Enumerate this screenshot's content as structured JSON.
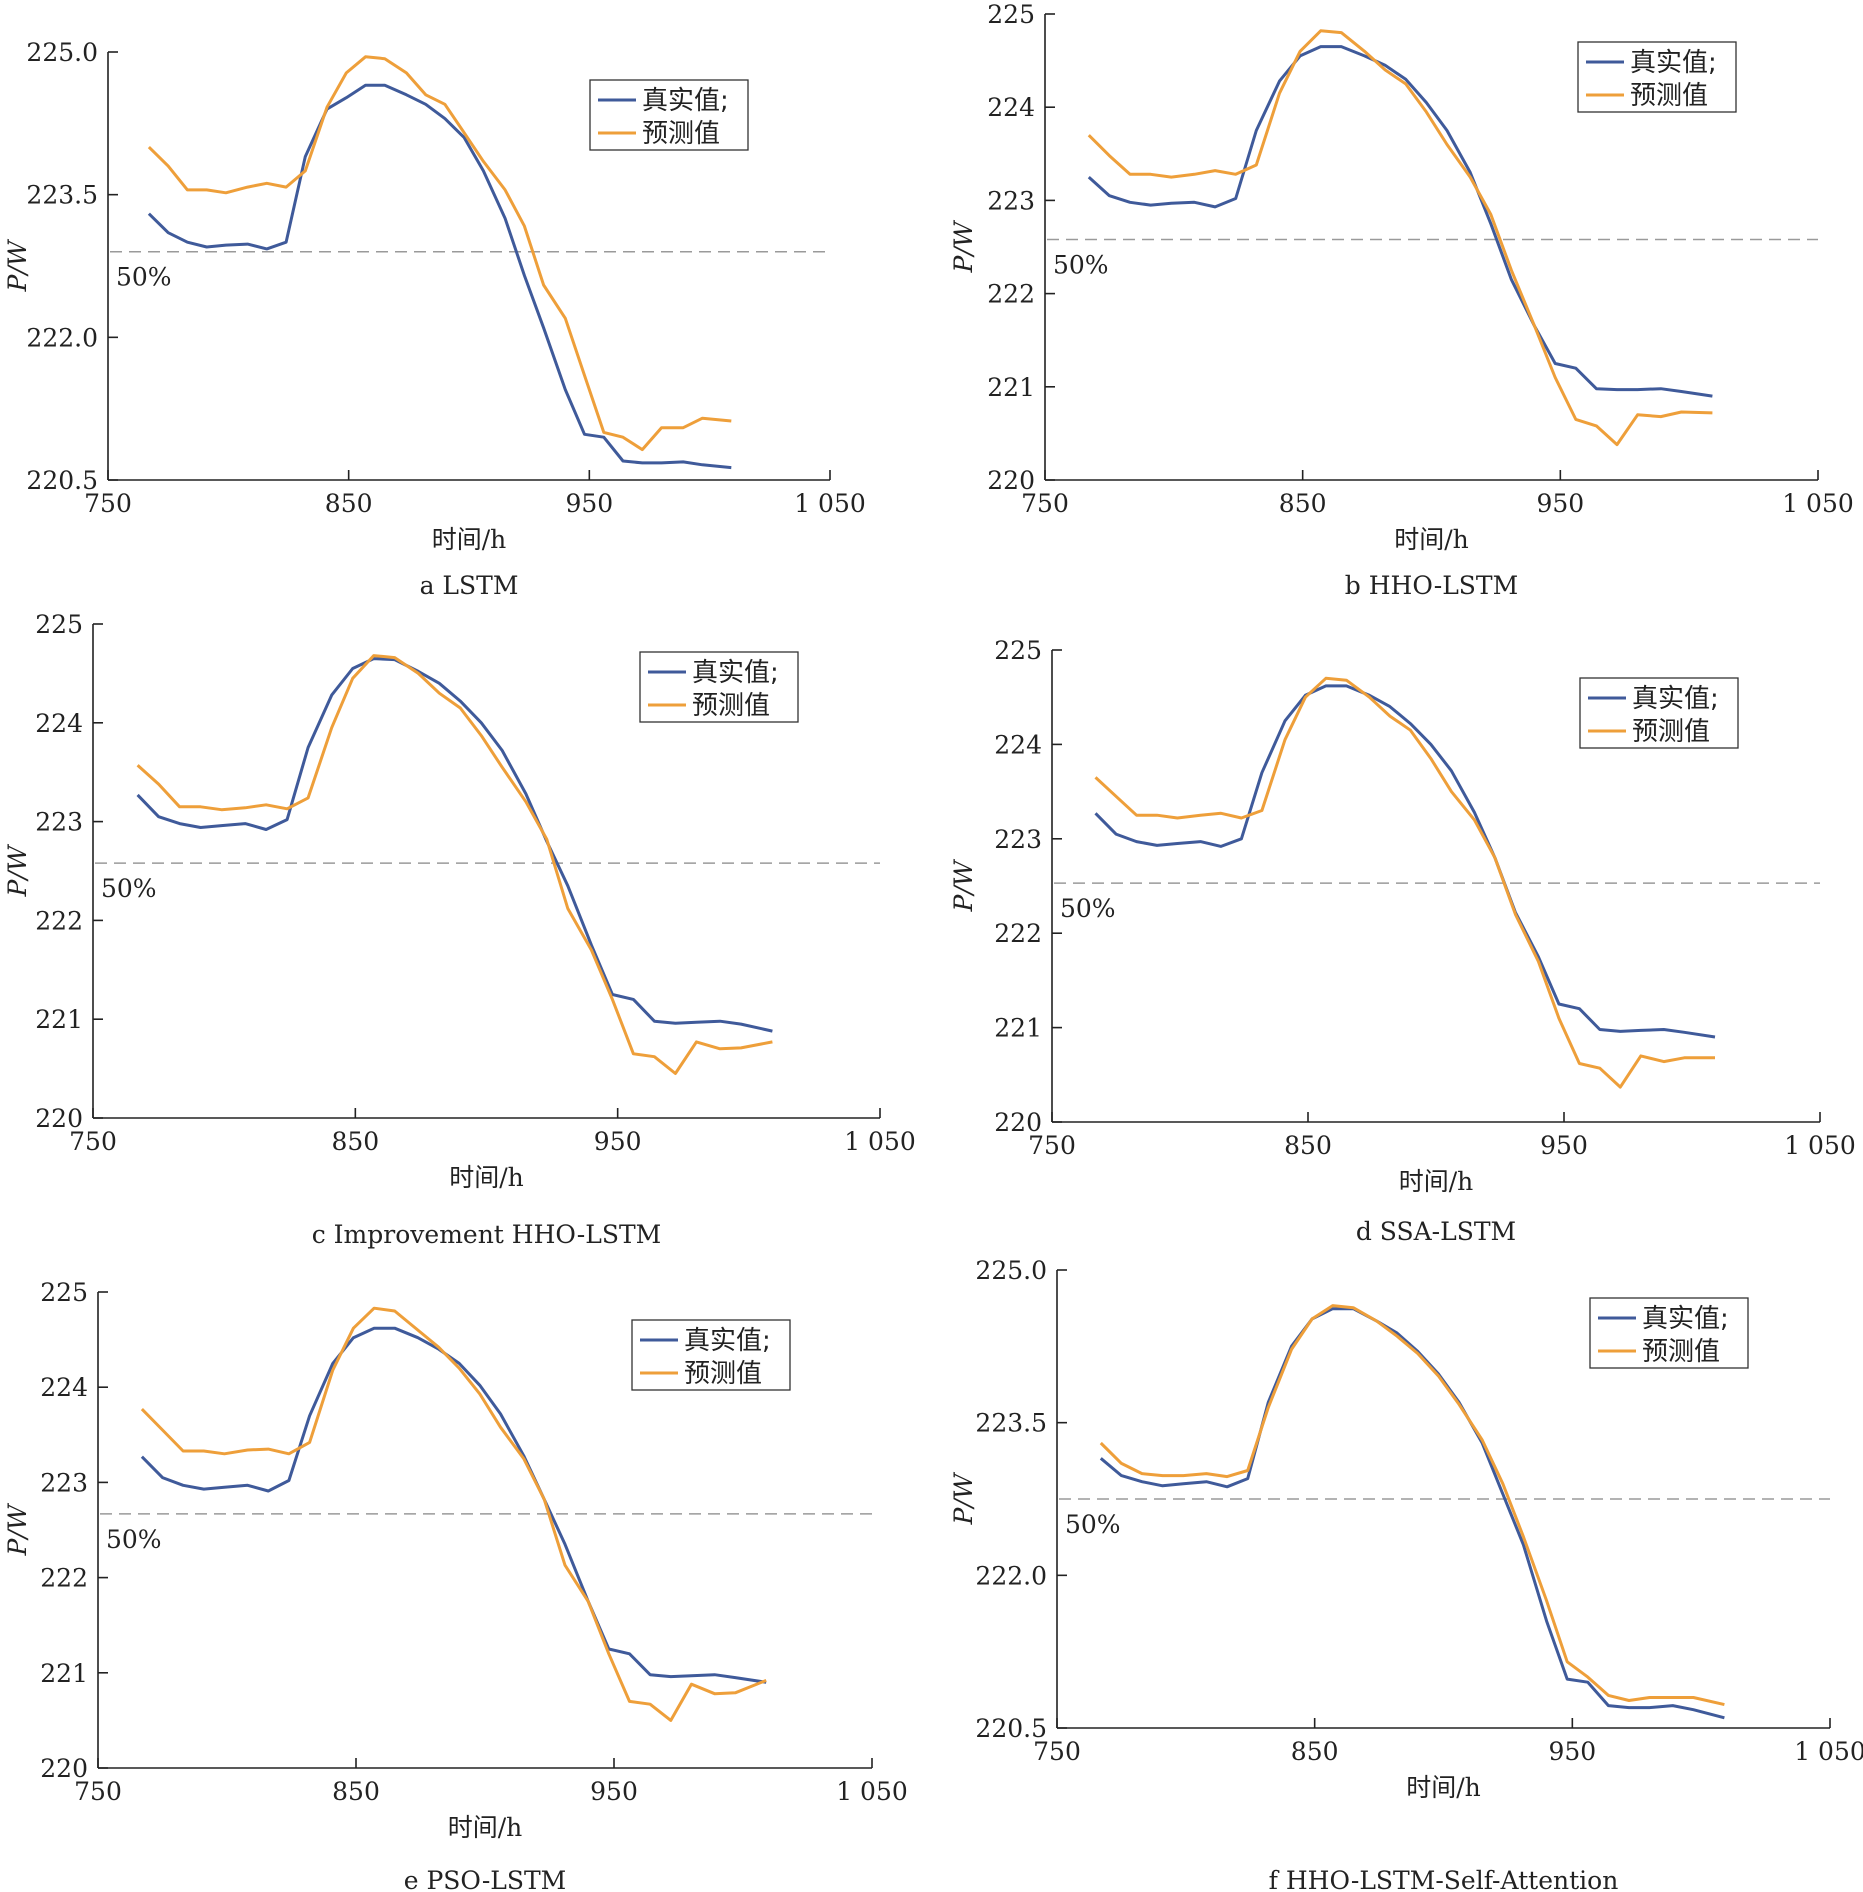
{
  "legend": {
    "actual": "真实值;",
    "predicted": "预测值"
  },
  "colors": {
    "actual": "#3f5a9a",
    "predicted": "#ee9f3a",
    "reference": "#9a9a9a",
    "axis": "#222222"
  },
  "chart_data": [
    {
      "type": "line",
      "caption": "a LSTM",
      "xlabel": "时间/h",
      "ylabel": "P/W",
      "xlim": [
        750,
        1050
      ],
      "ylim": [
        220.5,
        225.0
      ],
      "xticks": [
        750,
        850,
        950,
        1050
      ],
      "xtick_labels": [
        "750",
        "850",
        "950",
        "1 050"
      ],
      "yticks": [
        220.5,
        222.0,
        223.5,
        225.0
      ],
      "ytick_labels": [
        "220.5",
        "222.0",
        "223.5",
        "225.0"
      ],
      "reference_line": {
        "y": 222.9,
        "label": "50%"
      },
      "legend_position": "top-right",
      "series": [
        {
          "name": "真实值;",
          "x": [
            767,
            775,
            783,
            791,
            799,
            808,
            816,
            824,
            832,
            841,
            849,
            857,
            865,
            874,
            882,
            890,
            898,
            906,
            915,
            923,
            931,
            940,
            948,
            956,
            964,
            972,
            980,
            989,
            997,
            1009
          ],
          "y": [
            223.3,
            223.1,
            223.0,
            222.95,
            222.97,
            222.98,
            222.93,
            223.0,
            223.9,
            224.4,
            224.52,
            224.65,
            224.65,
            224.55,
            224.45,
            224.3,
            224.1,
            223.75,
            223.25,
            222.65,
            222.1,
            221.45,
            220.98,
            220.95,
            220.7,
            220.68,
            220.68,
            220.69,
            220.66,
            220.63
          ]
        },
        {
          "name": "预测值",
          "x": [
            767,
            775,
            783,
            791,
            799,
            808,
            816,
            824,
            832,
            841,
            849,
            857,
            865,
            874,
            882,
            890,
            898,
            906,
            915,
            923,
            931,
            940,
            948,
            956,
            964,
            972,
            980,
            989,
            997,
            1009
          ],
          "y": [
            224.0,
            223.8,
            223.55,
            223.55,
            223.52,
            223.58,
            223.62,
            223.58,
            223.75,
            224.42,
            224.78,
            224.95,
            224.93,
            224.78,
            224.55,
            224.45,
            224.15,
            223.85,
            223.55,
            223.17,
            222.55,
            222.2,
            221.6,
            221.0,
            220.95,
            220.82,
            221.05,
            221.05,
            221.15,
            221.12
          ]
        }
      ]
    },
    {
      "type": "line",
      "caption": "b HHO-LSTM",
      "xlabel": "时间/h",
      "ylabel": "P/W",
      "xlim": [
        750,
        1050
      ],
      "ylim": [
        220,
        225
      ],
      "xticks": [
        750,
        850,
        950,
        1050
      ],
      "xtick_labels": [
        "750",
        "850",
        "950",
        "1 050"
      ],
      "yticks": [
        220,
        221,
        222,
        223,
        224,
        225
      ],
      "ytick_labels": [
        "220",
        "221",
        "222",
        "223",
        "224",
        "225"
      ],
      "reference_line": {
        "y": 222.58,
        "label": "50%"
      },
      "legend_position": "top-right",
      "series": [
        {
          "name": "真实值;",
          "x": [
            767,
            775,
            783,
            791,
            799,
            808,
            816,
            824,
            832,
            841,
            849,
            857,
            865,
            874,
            882,
            890,
            898,
            906,
            915,
            923,
            931,
            940,
            948,
            956,
            964,
            972,
            980,
            989,
            997,
            1009
          ],
          "y": [
            223.25,
            223.05,
            222.98,
            222.95,
            222.97,
            222.98,
            222.93,
            223.02,
            223.75,
            224.28,
            224.55,
            224.65,
            224.65,
            224.55,
            224.45,
            224.3,
            224.05,
            223.75,
            223.3,
            222.75,
            222.15,
            221.65,
            221.25,
            221.2,
            220.98,
            220.97,
            220.97,
            220.98,
            220.95,
            220.9
          ]
        },
        {
          "name": "预测值",
          "x": [
            767,
            775,
            783,
            791,
            799,
            808,
            816,
            824,
            832,
            841,
            849,
            857,
            865,
            874,
            882,
            890,
            898,
            906,
            915,
            923,
            931,
            940,
            948,
            956,
            964,
            972,
            980,
            989,
            997,
            1009
          ],
          "y": [
            223.7,
            223.48,
            223.28,
            223.28,
            223.25,
            223.28,
            223.32,
            223.28,
            223.38,
            224.15,
            224.6,
            224.82,
            224.8,
            224.6,
            224.4,
            224.25,
            223.95,
            223.6,
            223.25,
            222.85,
            222.25,
            221.65,
            221.1,
            220.65,
            220.58,
            220.38,
            220.7,
            220.68,
            220.73,
            220.72
          ]
        }
      ]
    },
    {
      "type": "line",
      "caption": "c Improvement HHO-LSTM",
      "xlabel": "时间/h",
      "ylabel": "P/W",
      "xlim": [
        750,
        1050
      ],
      "ylim": [
        220,
        225
      ],
      "xticks": [
        750,
        850,
        950,
        1050
      ],
      "xtick_labels": [
        "750",
        "850",
        "950",
        "1 050"
      ],
      "yticks": [
        220,
        221,
        222,
        223,
        224,
        225
      ],
      "ytick_labels": [
        "220",
        "221",
        "222",
        "223",
        "224",
        "225"
      ],
      "reference_line": {
        "y": 222.58,
        "label": "50%"
      },
      "legend_position": "top-right",
      "series": [
        {
          "name": "真实值;",
          "x": [
            767,
            775,
            783,
            791,
            799,
            808,
            816,
            824,
            832,
            841,
            849,
            857,
            865,
            874,
            882,
            890,
            898,
            906,
            915,
            923,
            931,
            940,
            948,
            956,
            964,
            972,
            980,
            989,
            997,
            1009
          ],
          "y": [
            223.27,
            223.05,
            222.98,
            222.94,
            222.96,
            222.98,
            222.92,
            223.02,
            223.75,
            224.28,
            224.55,
            224.65,
            224.64,
            224.52,
            224.4,
            224.22,
            224.0,
            223.72,
            223.28,
            222.8,
            222.35,
            221.75,
            221.25,
            221.2,
            220.98,
            220.96,
            220.97,
            220.98,
            220.95,
            220.88
          ]
        },
        {
          "name": "预测值",
          "x": [
            767,
            775,
            783,
            791,
            799,
            808,
            816,
            824,
            832,
            841,
            849,
            857,
            865,
            874,
            882,
            890,
            898,
            906,
            915,
            923,
            931,
            940,
            948,
            956,
            964,
            972,
            980,
            989,
            997,
            1009
          ],
          "y": [
            223.57,
            223.38,
            223.15,
            223.15,
            223.12,
            223.14,
            223.17,
            223.13,
            223.24,
            223.95,
            224.45,
            224.68,
            224.66,
            224.5,
            224.3,
            224.15,
            223.87,
            223.55,
            223.2,
            222.82,
            222.12,
            221.7,
            221.2,
            220.65,
            220.62,
            220.45,
            220.77,
            220.7,
            220.71,
            220.77
          ]
        }
      ]
    },
    {
      "type": "line",
      "caption": "d SSA-LSTM",
      "xlabel": "时间/h",
      "ylabel": "P/W",
      "xlim": [
        750,
        1050
      ],
      "ylim": [
        220,
        225
      ],
      "xticks": [
        750,
        850,
        950,
        1050
      ],
      "xtick_labels": [
        "750",
        "850",
        "950",
        "1 050"
      ],
      "yticks": [
        220,
        221,
        222,
        223,
        224,
        225
      ],
      "ytick_labels": [
        "220",
        "221",
        "222",
        "223",
        "224",
        "225"
      ],
      "reference_line": {
        "y": 222.53,
        "label": "50%"
      },
      "legend_position": "top-right",
      "series": [
        {
          "name": "真实值;",
          "x": [
            767,
            775,
            783,
            791,
            799,
            808,
            816,
            824,
            832,
            841,
            849,
            857,
            865,
            874,
            882,
            890,
            898,
            906,
            915,
            923,
            931,
            940,
            948,
            956,
            964,
            972,
            980,
            989,
            997,
            1009
          ],
          "y": [
            223.27,
            223.05,
            222.97,
            222.93,
            222.95,
            222.97,
            222.92,
            223.0,
            223.7,
            224.25,
            224.52,
            224.62,
            224.62,
            224.52,
            224.4,
            224.22,
            224.0,
            223.72,
            223.28,
            222.8,
            222.22,
            221.75,
            221.25,
            221.2,
            220.98,
            220.96,
            220.97,
            220.98,
            220.95,
            220.9
          ]
        },
        {
          "name": "预测值",
          "x": [
            767,
            775,
            783,
            791,
            799,
            808,
            816,
            824,
            832,
            841,
            849,
            857,
            865,
            874,
            882,
            890,
            898,
            906,
            915,
            923,
            931,
            940,
            948,
            956,
            964,
            972,
            980,
            989,
            997,
            1009
          ],
          "y": [
            223.65,
            223.45,
            223.25,
            223.25,
            223.22,
            223.25,
            223.27,
            223.22,
            223.3,
            224.05,
            224.5,
            224.7,
            224.68,
            224.5,
            224.3,
            224.15,
            223.85,
            223.5,
            223.2,
            222.8,
            222.2,
            221.7,
            221.1,
            220.62,
            220.57,
            220.37,
            220.7,
            220.64,
            220.68,
            220.68
          ]
        }
      ]
    },
    {
      "type": "line",
      "caption": "e PSO-LSTM",
      "xlabel": "时间/h",
      "ylabel": "P/W",
      "xlim": [
        750,
        1050
      ],
      "ylim": [
        220,
        225
      ],
      "xticks": [
        750,
        850,
        950,
        1050
      ],
      "xtick_labels": [
        "750",
        "850",
        "950",
        "1 050"
      ],
      "yticks": [
        220,
        221,
        222,
        223,
        224,
        225
      ],
      "ytick_labels": [
        "220",
        "221",
        "222",
        "223",
        "224",
        "225"
      ],
      "reference_line": {
        "y": 222.67,
        "label": "50%"
      },
      "legend_position": "top-right",
      "series": [
        {
          "name": "真实值;",
          "x": [
            767,
            775,
            783,
            791,
            799,
            808,
            816,
            824,
            832,
            841,
            849,
            857,
            865,
            874,
            882,
            890,
            898,
            906,
            915,
            923,
            931,
            940,
            948,
            956,
            964,
            972,
            980,
            989,
            997,
            1009
          ],
          "y": [
            223.27,
            223.05,
            222.97,
            222.93,
            222.95,
            222.97,
            222.91,
            223.02,
            223.7,
            224.25,
            224.52,
            224.62,
            224.62,
            224.52,
            224.4,
            224.25,
            224.02,
            223.72,
            223.28,
            222.82,
            222.35,
            221.75,
            221.25,
            221.2,
            220.98,
            220.96,
            220.97,
            220.98,
            220.95,
            220.9
          ]
        },
        {
          "name": "预测值",
          "x": [
            767,
            775,
            783,
            791,
            799,
            808,
            816,
            824,
            832,
            841,
            849,
            857,
            865,
            874,
            882,
            890,
            898,
            906,
            915,
            923,
            931,
            940,
            948,
            956,
            964,
            972,
            980,
            989,
            997,
            1009
          ],
          "y": [
            223.77,
            223.55,
            223.33,
            223.33,
            223.3,
            223.34,
            223.35,
            223.3,
            223.42,
            224.18,
            224.62,
            224.83,
            224.8,
            224.6,
            224.42,
            224.2,
            223.93,
            223.58,
            223.25,
            222.82,
            222.13,
            221.75,
            221.2,
            220.7,
            220.67,
            220.5,
            220.88,
            220.78,
            220.79,
            220.92
          ]
        }
      ]
    },
    {
      "type": "line",
      "caption": "f HHO-LSTM-Self-Attention",
      "xlabel": "时间/h",
      "ylabel": "P/W",
      "xlim": [
        750,
        1050
      ],
      "ylim": [
        220.5,
        225.0
      ],
      "xticks": [
        750,
        850,
        950,
        1050
      ],
      "xtick_labels": [
        "750",
        "850",
        "950",
        "1 050"
      ],
      "yticks": [
        220.5,
        222.0,
        223.5,
        225.0
      ],
      "ytick_labels": [
        "220.5",
        "222.0",
        "223.5",
        "225.0"
      ],
      "reference_line": {
        "y": 222.75,
        "label": "50%"
      },
      "legend_position": "top-right",
      "series": [
        {
          "name": "真实值;",
          "x": [
            767,
            775,
            783,
            791,
            799,
            808,
            816,
            824,
            832,
            841,
            849,
            857,
            865,
            874,
            882,
            890,
            898,
            906,
            915,
            923,
            931,
            940,
            948,
            956,
            964,
            972,
            980,
            989,
            997,
            1009
          ],
          "y": [
            223.15,
            222.98,
            222.92,
            222.88,
            222.9,
            222.92,
            222.87,
            222.95,
            223.7,
            224.25,
            224.52,
            224.62,
            224.62,
            224.5,
            224.38,
            224.2,
            223.98,
            223.7,
            223.3,
            222.8,
            222.3,
            221.55,
            220.98,
            220.95,
            220.72,
            220.7,
            220.7,
            220.72,
            220.68,
            220.6
          ]
        },
        {
          "name": "预测值",
          "x": [
            767,
            775,
            783,
            791,
            799,
            808,
            816,
            824,
            832,
            841,
            849,
            857,
            865,
            874,
            882,
            890,
            898,
            906,
            915,
            923,
            931,
            940,
            948,
            956,
            964,
            972,
            980,
            989,
            997,
            1009
          ],
          "y": [
            223.3,
            223.1,
            223.0,
            222.98,
            222.98,
            223.0,
            222.97,
            223.03,
            223.65,
            224.22,
            224.52,
            224.65,
            224.63,
            224.5,
            224.35,
            224.18,
            223.96,
            223.68,
            223.33,
            222.9,
            222.38,
            221.75,
            221.15,
            221.0,
            220.82,
            220.77,
            220.8,
            220.8,
            220.8,
            220.73
          ]
        }
      ]
    }
  ]
}
